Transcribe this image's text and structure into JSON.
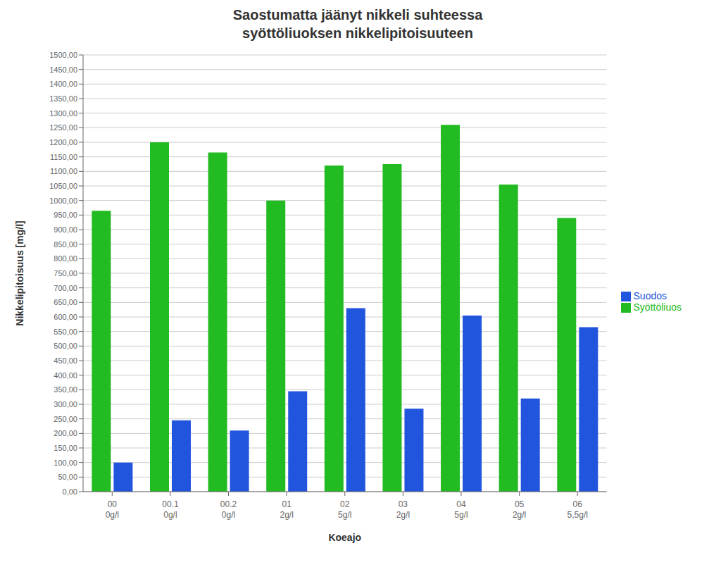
{
  "chart_data": {
    "type": "bar",
    "title": "Saostumatta jäänyt nikkeli suhteessa\nsyöttöliuoksen nikkelipitoisuuteen",
    "xlabel": "Koeajo",
    "ylabel": "Nikkelipitoisuus [mg/l]",
    "categories": [
      "00\n0g/l",
      "00.1\n0g/l",
      "00.2\n0g/l",
      "01\n2g/l",
      "02\n5g/l",
      "03\n2g/l",
      "04\n5g/l",
      "05\n2g/l",
      "06\n5,5g/l"
    ],
    "series": [
      {
        "name": "Syöttöliuos",
        "color": "#22BB22",
        "values": [
          965,
          1200,
          1165,
          1000,
          1120,
          1125,
          1260,
          1055,
          940
        ]
      },
      {
        "name": "Suodos",
        "color": "#2255DD",
        "values": [
          100,
          245,
          210,
          345,
          630,
          285,
          605,
          320,
          565
        ]
      }
    ],
    "ylim": [
      0,
      1500
    ],
    "yticks": [
      {
        "value": 0,
        "label": "0,00"
      },
      {
        "value": 50,
        "label": "50,00"
      },
      {
        "value": 100,
        "label": "100,00"
      },
      {
        "value": 150,
        "label": "150,00"
      },
      {
        "value": 200,
        "label": "200,00"
      },
      {
        "value": 250,
        "label": "250,00"
      },
      {
        "value": 300,
        "label": "300,00"
      },
      {
        "value": 350,
        "label": "350,00"
      },
      {
        "value": 400,
        "label": "400,00"
      },
      {
        "value": 450,
        "label": "450,00"
      },
      {
        "value": 500,
        "label": "500,00"
      },
      {
        "value": 550,
        "label": "550,00"
      },
      {
        "value": 600,
        "label": "600,00"
      },
      {
        "value": 650,
        "label": "650,00"
      },
      {
        "value": 700,
        "label": "700,00"
      },
      {
        "value": 750,
        "label": "750,00"
      },
      {
        "value": 800,
        "label": "800,00"
      },
      {
        "value": 850,
        "label": "850,00"
      },
      {
        "value": 900,
        "label": "900,00"
      },
      {
        "value": 950,
        "label": "950,00"
      },
      {
        "value": 1000,
        "label": "1000,00"
      },
      {
        "value": 1050,
        "label": "1050,00"
      },
      {
        "value": 1100,
        "label": "1100,00"
      },
      {
        "value": 1150,
        "label": "1150,00"
      },
      {
        "value": 1200,
        "label": "1200,00"
      },
      {
        "value": 1250,
        "label": "1250,00"
      },
      {
        "value": 1300,
        "label": "1300,00"
      },
      {
        "value": 1350,
        "label": "1350,00"
      },
      {
        "value": 1400,
        "label": "1400,00"
      },
      {
        "value": 1450,
        "label": "1450,00"
      },
      {
        "value": 1500,
        "label": "1500,00"
      }
    ],
    "grid": true,
    "legend": "right"
  }
}
